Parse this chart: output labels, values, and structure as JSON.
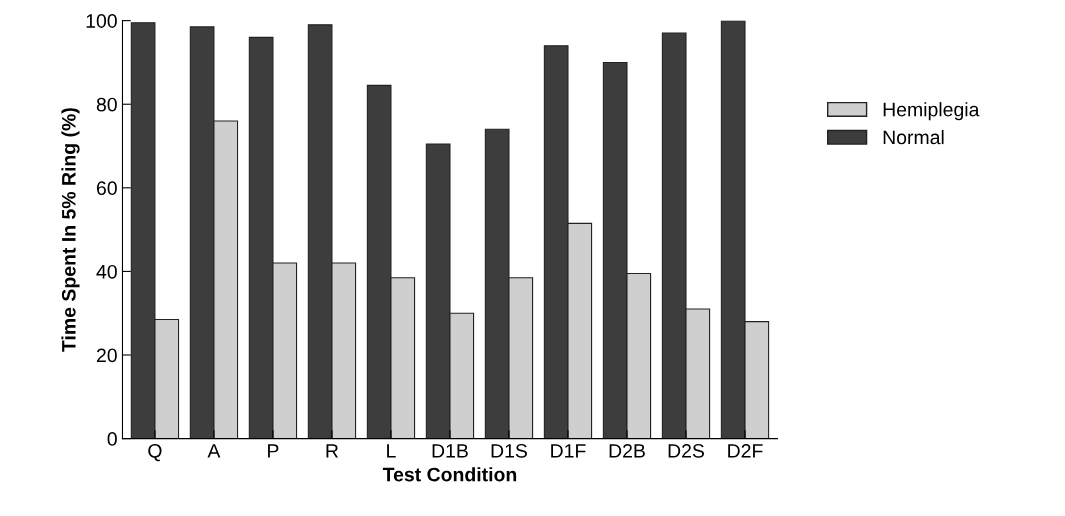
{
  "chart_data": {
    "type": "bar",
    "xlabel": "Test Condition",
    "ylabel": "Time Spent In 5% Ring (%)",
    "categories": [
      "Q",
      "A",
      "P",
      "R",
      "L",
      "D1B",
      "D1S",
      "D1F",
      "D2B",
      "D2S",
      "D2F"
    ],
    "series": [
      {
        "name": "Normal",
        "color": "#3d3d3d",
        "values": [
          99.5,
          98.5,
          96,
          99,
          84.5,
          70.5,
          74,
          94,
          90,
          97,
          100
        ]
      },
      {
        "name": "Hemiplegia",
        "color": "#cfcfcf",
        "values": [
          28.5,
          76,
          42,
          42,
          38.5,
          30,
          38.5,
          51.5,
          39.5,
          31,
          28
        ]
      }
    ],
    "ylim": [
      0,
      100
    ],
    "yticks": [
      0,
      20,
      40,
      60,
      80,
      100
    ],
    "grid": false,
    "legend": "right"
  }
}
